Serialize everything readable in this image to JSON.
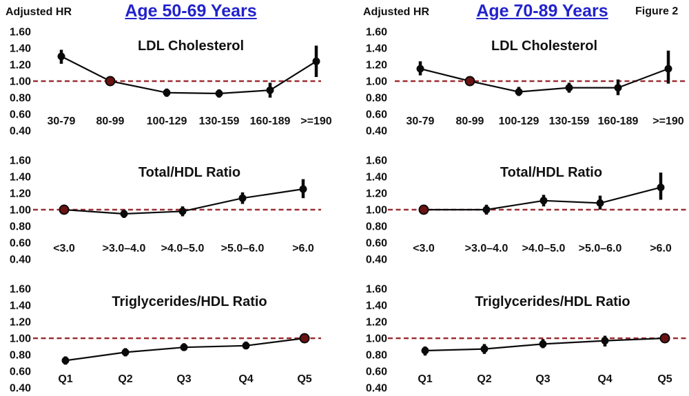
{
  "figure_label": "Figure 2",
  "y_axis_ticks": [
    "1.60",
    "1.40",
    "1.20",
    "1.00",
    "0.80",
    "0.60",
    "0.40"
  ],
  "colors": {
    "title_blue": "#2222cc",
    "reference_line_red": "#9b2d33",
    "series_black": "#0a0a0a",
    "reference_marker_fill": "#6b1212",
    "text": "#111111",
    "background": "#ffffff"
  },
  "columns": [
    {
      "title": "Age 50-69 Years",
      "axis_label": "Adjusted HR"
    },
    {
      "title": "Age 70-89 Years",
      "axis_label": "Adjusted HR"
    }
  ],
  "chart_data": [
    {
      "type": "line",
      "title": "LDL Cholesterol",
      "column": "Age 50-69 Years",
      "ylabel": "Adjusted HR",
      "ylim": [
        0.4,
        1.6
      ],
      "ref_line": 1.0,
      "ref_index": 1,
      "grid": false,
      "categories": [
        "30-79",
        "80-99",
        "100-129",
        "130-159",
        "160-189",
        ">=190"
      ],
      "values": [
        1.3,
        1.0,
        0.86,
        0.85,
        0.89,
        1.24
      ],
      "ci_low": [
        1.21,
        1.0,
        0.81,
        0.8,
        0.8,
        1.05
      ],
      "ci_high": [
        1.38,
        1.0,
        0.91,
        0.9,
        0.98,
        1.43
      ]
    },
    {
      "type": "line",
      "title": "LDL Cholesterol",
      "column": "Age 70-89 Years",
      "ylabel": "Adjusted HR",
      "ylim": [
        0.4,
        1.6
      ],
      "ref_line": 1.0,
      "ref_index": 1,
      "grid": false,
      "categories": [
        "30-79",
        "80-99",
        "100-129",
        "130-159",
        "160-189",
        ">=190"
      ],
      "values": [
        1.15,
        1.0,
        0.87,
        0.92,
        0.92,
        1.15
      ],
      "ci_low": [
        1.07,
        1.0,
        0.82,
        0.86,
        0.83,
        0.97
      ],
      "ci_high": [
        1.24,
        1.0,
        0.93,
        0.98,
        1.02,
        1.37
      ]
    },
    {
      "type": "line",
      "title": "Total/HDL Ratio",
      "column": "Age 50-69 Years",
      "ylabel": "Adjusted HR",
      "ylim": [
        0.4,
        1.6
      ],
      "ref_line": 1.0,
      "ref_index": 0,
      "grid": false,
      "categories": [
        "<3.0",
        ">3.0–4.0",
        ">4.0–5.0",
        ">5.0–6.0",
        ">6.0"
      ],
      "values": [
        1.0,
        0.95,
        0.98,
        1.14,
        1.25
      ],
      "ci_low": [
        1.0,
        0.9,
        0.92,
        1.07,
        1.14
      ],
      "ci_high": [
        1.0,
        1.0,
        1.04,
        1.21,
        1.37
      ]
    },
    {
      "type": "line",
      "title": "Total/HDL Ratio",
      "column": "Age 70-89 Years",
      "ylabel": "Adjusted HR",
      "ylim": [
        0.4,
        1.6
      ],
      "ref_line": 1.0,
      "ref_index": 0,
      "grid": false,
      "categories": [
        "<3.0",
        ">3.0–4.0",
        ">4.0–5.0",
        ">5.0–6.0",
        ">6.0"
      ],
      "values": [
        1.0,
        1.0,
        1.11,
        1.08,
        1.27
      ],
      "ci_low": [
        1.0,
        0.94,
        1.04,
        1.0,
        1.12
      ],
      "ci_high": [
        1.0,
        1.06,
        1.18,
        1.17,
        1.45
      ]
    },
    {
      "type": "line",
      "title": "Triglycerides/HDL Ratio",
      "column": "Age 50-69 Years",
      "ylabel": "Adjusted HR",
      "ylim": [
        0.4,
        1.6
      ],
      "ref_line": 1.0,
      "ref_index": 4,
      "grid": false,
      "categories": [
        "Q1",
        "Q2",
        "Q3",
        "Q4",
        "Q5"
      ],
      "values": [
        0.73,
        0.83,
        0.89,
        0.91,
        1.0
      ],
      "ci_low": [
        0.68,
        0.78,
        0.85,
        0.87,
        1.0
      ],
      "ci_high": [
        0.78,
        0.88,
        0.94,
        0.96,
        1.0
      ]
    },
    {
      "type": "line",
      "title": "Triglycerides/HDL Ratio",
      "column": "Age 70-89 Years",
      "ylabel": "Adjusted HR",
      "ylim": [
        0.4,
        1.6
      ],
      "ref_line": 1.0,
      "ref_index": 4,
      "grid": false,
      "categories": [
        "Q1",
        "Q2",
        "Q3",
        "Q4",
        "Q5"
      ],
      "values": [
        0.85,
        0.87,
        0.93,
        0.97,
        1.0
      ],
      "ci_low": [
        0.79,
        0.81,
        0.88,
        0.9,
        1.0
      ],
      "ci_high": [
        0.9,
        0.93,
        0.99,
        1.03,
        1.0
      ]
    }
  ]
}
